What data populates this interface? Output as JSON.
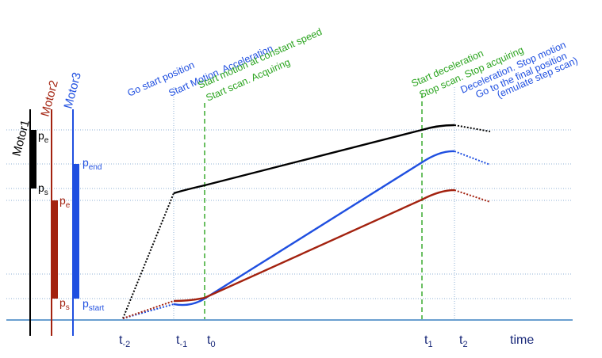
{
  "motors": [
    {
      "name": "Motor1",
      "color": "#000000",
      "labels": {
        "pe": "p",
        "pe_sub": "e",
        "ps": "p",
        "ps_sub": "s"
      }
    },
    {
      "name": "Motor2",
      "color": "#a3220f",
      "labels": {
        "pe": "p",
        "pe_sub": "e",
        "ps": "p",
        "ps_sub": "s"
      }
    },
    {
      "name": "Motor3",
      "color": "#1f4fe0",
      "labels": {
        "pe": "p",
        "pe_sub": "end",
        "ps": "p",
        "ps_sub": "start"
      }
    }
  ],
  "events": [
    {
      "text": "Go start position",
      "color": "#1f4fe0"
    },
    {
      "text": "Start Motion. Acceleration",
      "color": "#1f4fe0"
    },
    {
      "text": "Start motion at constant speed",
      "color": "#2aa41e"
    },
    {
      "text": "Start scan. Acquiring",
      "color": "#2aa41e"
    },
    {
      "text": "Start deceleration",
      "color": "#2aa41e"
    },
    {
      "text": "Stop scan. Stop acquiring",
      "color": "#2aa41e"
    },
    {
      "text": "Deceleration. Stop motion",
      "color": "#1f4fe0"
    },
    {
      "text": "Go to the final position",
      "color": "#1f4fe0"
    },
    {
      "text": "(emulate step scan)",
      "color": "#1f4fe0"
    }
  ],
  "time_labels": [
    {
      "base": "t",
      "sub": "-2"
    },
    {
      "base": "t",
      "sub": "-1"
    },
    {
      "base": "t",
      "sub": "0"
    },
    {
      "base": "t",
      "sub": "1"
    },
    {
      "base": "t",
      "sub": "2"
    }
  ],
  "axis_label": "time",
  "colors": {
    "axis": "#6a9fd0",
    "grid": "#8fb2d6",
    "green_marker": "#2aa41e",
    "blue_text": "#1f4fe0",
    "navy_text": "#1a2a7a"
  }
}
